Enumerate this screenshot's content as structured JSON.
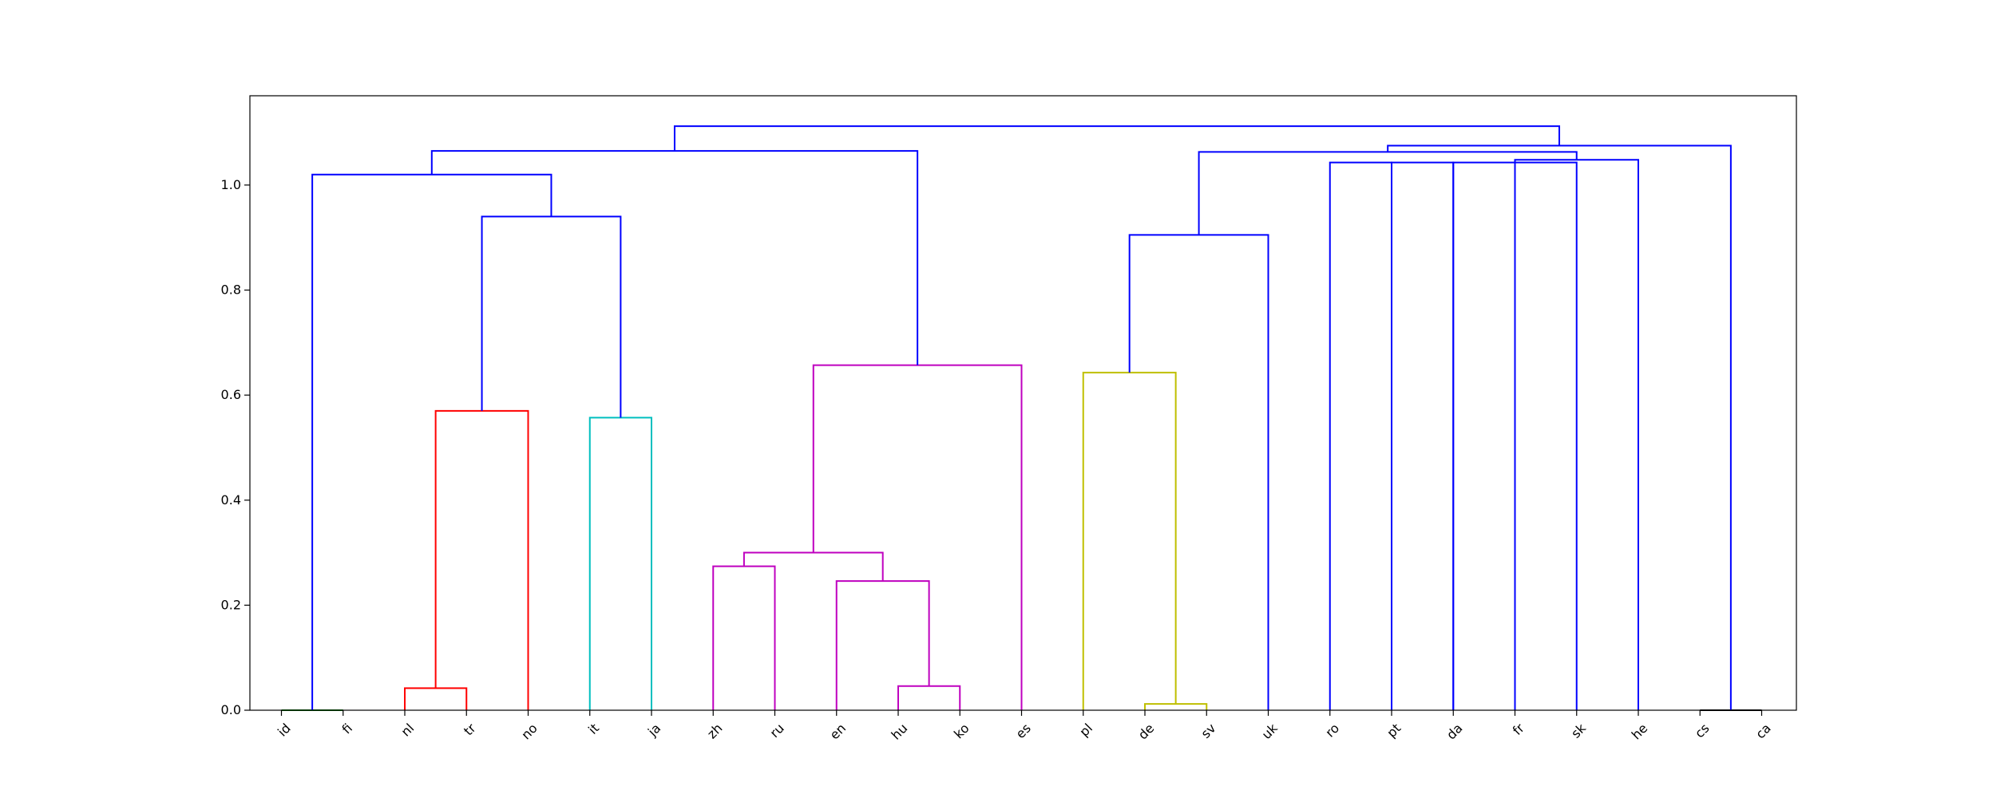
{
  "chart_data": {
    "type": "dendrogram",
    "ylim": [
      0,
      1.17
    ],
    "yticks": [
      "0.0",
      "0.2",
      "0.4",
      "0.6",
      "0.8",
      "1.0"
    ],
    "ytick_values": [
      0.0,
      0.2,
      0.4,
      0.6,
      0.8,
      1.0
    ],
    "leaves": [
      "id",
      "fi",
      "nl",
      "tr",
      "no",
      "it",
      "ja",
      "zh",
      "ru",
      "en",
      "hu",
      "ko",
      "es",
      "pl",
      "de",
      "sv",
      "uk",
      "ro",
      "pt",
      "da",
      "fr",
      "sk",
      "he",
      "cs",
      "ca"
    ],
    "links": [
      {
        "x": [
          0,
          0,
          1,
          1
        ],
        "y": [
          0.0,
          0.0,
          0.0,
          0.0
        ],
        "color": "#008000"
      },
      {
        "x": [
          2,
          2,
          3,
          3
        ],
        "y": [
          0.0,
          0.042,
          0.042,
          0.0
        ],
        "color": "#ff0000"
      },
      {
        "x": [
          2.5,
          2.5,
          4,
          4
        ],
        "y": [
          0.042,
          0.57,
          0.57,
          0.0
        ],
        "color": "#ff0000"
      },
      {
        "x": [
          5,
          5,
          6,
          6
        ],
        "y": [
          0.0,
          0.557,
          0.557,
          0.0
        ],
        "color": "#00bfbf"
      },
      {
        "x": [
          7,
          7,
          8,
          8
        ],
        "y": [
          0.0,
          0.274,
          0.274,
          0.0
        ],
        "color": "#bf00bf"
      },
      {
        "x": [
          10,
          10,
          11,
          11
        ],
        "y": [
          0.0,
          0.046,
          0.046,
          0.0
        ],
        "color": "#bf00bf"
      },
      {
        "x": [
          9,
          9,
          10.5,
          10.5
        ],
        "y": [
          0.0,
          0.246,
          0.246,
          0.046
        ],
        "color": "#bf00bf"
      },
      {
        "x": [
          7.5,
          7.5,
          9.75,
          9.75
        ],
        "y": [
          0.274,
          0.3,
          0.3,
          0.246
        ],
        "color": "#bf00bf"
      },
      {
        "x": [
          8.625,
          8.625,
          12,
          12
        ],
        "y": [
          0.3,
          0.657,
          0.657,
          0.0
        ],
        "color": "#bf00bf"
      },
      {
        "x": [
          14,
          14,
          15,
          15
        ],
        "y": [
          0.0,
          0.012,
          0.012,
          0.0
        ],
        "color": "#bfbf00"
      },
      {
        "x": [
          13,
          13,
          14.5,
          14.5
        ],
        "y": [
          0.0,
          0.643,
          0.643,
          0.012
        ],
        "color": "#bfbf00"
      },
      {
        "x": [
          23,
          23,
          24,
          24
        ],
        "y": [
          0.0,
          0.0,
          0.0,
          0.0
        ],
        "color": "#000000"
      },
      {
        "x": [
          3.25,
          3.25,
          5.5,
          5.5
        ],
        "y": [
          0.57,
          0.94,
          0.94,
          0.557
        ],
        "color": "#0000ff"
      },
      {
        "x": [
          0.5,
          0.5,
          4.375,
          4.375
        ],
        "y": [
          0.0,
          1.02,
          1.02,
          0.94
        ],
        "color": "#0000ff"
      },
      {
        "x": [
          2.4375,
          2.4375,
          10.3125,
          10.3125
        ],
        "y": [
          1.02,
          1.065,
          1.065,
          0.657
        ],
        "color": "#0000ff"
      },
      {
        "x": [
          13.75,
          13.75,
          16,
          16
        ],
        "y": [
          0.643,
          0.905,
          0.905,
          0.0
        ],
        "color": "#0000ff"
      },
      {
        "x": [
          17,
          17,
          18,
          18
        ],
        "y": [
          0.0,
          1.043,
          1.043,
          0.0
        ],
        "color": "#0000ff"
      },
      {
        "x": [
          18,
          18,
          19,
          19
        ],
        "y": [
          0.0,
          1.043,
          1.043,
          0.0
        ],
        "color": "#0000ff"
      },
      {
        "x": [
          19,
          19,
          20,
          20
        ],
        "y": [
          0.0,
          1.043,
          1.043,
          0.0
        ],
        "color": "#0000ff"
      },
      {
        "x": [
          20,
          20,
          21,
          21
        ],
        "y": [
          0.0,
          1.043,
          1.043,
          0.0
        ],
        "color": "#0000ff"
      },
      {
        "x": [
          20,
          20,
          22,
          22
        ],
        "y": [
          1.043,
          1.048,
          1.048,
          0.0
        ],
        "color": "#0000ff"
      },
      {
        "x": [
          14.875,
          14.875,
          21,
          21
        ],
        "y": [
          0.905,
          1.063,
          1.063,
          1.048
        ],
        "color": "#0000ff"
      },
      {
        "x": [
          17.9375,
          17.9375,
          23.5,
          23.5
        ],
        "y": [
          1.063,
          1.075,
          1.075,
          0.0
        ],
        "color": "#0000ff"
      },
      {
        "x": [
          6.375,
          6.375,
          20.7188,
          20.7188
        ],
        "y": [
          1.065,
          1.112,
          1.112,
          1.075
        ],
        "color": "#0000ff"
      }
    ]
  }
}
